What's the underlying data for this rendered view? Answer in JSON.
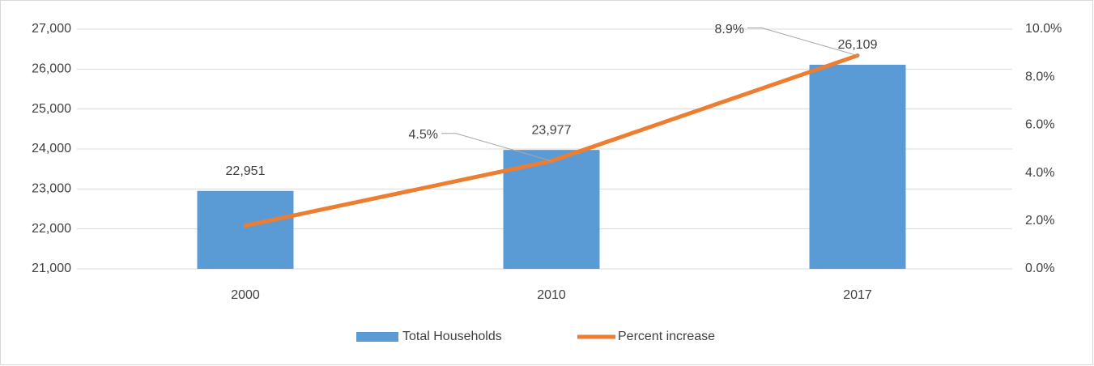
{
  "chart_data": {
    "type": "bar-line",
    "categories": [
      "2000",
      "2010",
      "2017"
    ],
    "series": [
      {
        "name": "Total Households",
        "type": "bar",
        "color": "#5b9bd5",
        "values": [
          22951,
          23977,
          26109
        ],
        "value_labels": [
          "22,951",
          "23,977",
          "26,109"
        ]
      },
      {
        "name": "Percent increase",
        "type": "line",
        "axis": "y2",
        "color": "#ed7d31",
        "values": [
          1.8,
          4.5,
          8.9
        ],
        "value_labels": [
          null,
          "4.5%",
          "8.9%"
        ]
      }
    ],
    "ylim": [
      21000,
      27000
    ],
    "yticks": [
      {
        "value": 21000,
        "label": "21,000"
      },
      {
        "value": 22000,
        "label": "22,000"
      },
      {
        "value": 23000,
        "label": "23,000"
      },
      {
        "value": 24000,
        "label": "24,000"
      },
      {
        "value": 25000,
        "label": "25,000"
      },
      {
        "value": 26000,
        "label": "26,000"
      },
      {
        "value": 27000,
        "label": "27,000"
      }
    ],
    "y2lim": [
      0,
      10
    ],
    "y2ticks": [
      {
        "value": 0,
        "label": "0.0%"
      },
      {
        "value": 2,
        "label": "2.0%"
      },
      {
        "value": 4,
        "label": "4.0%"
      },
      {
        "value": 6,
        "label": "6.0%"
      },
      {
        "value": 8,
        "label": "8.0%"
      },
      {
        "value": 10,
        "label": "10.0%"
      }
    ],
    "grid": true,
    "legend": "bottom"
  }
}
